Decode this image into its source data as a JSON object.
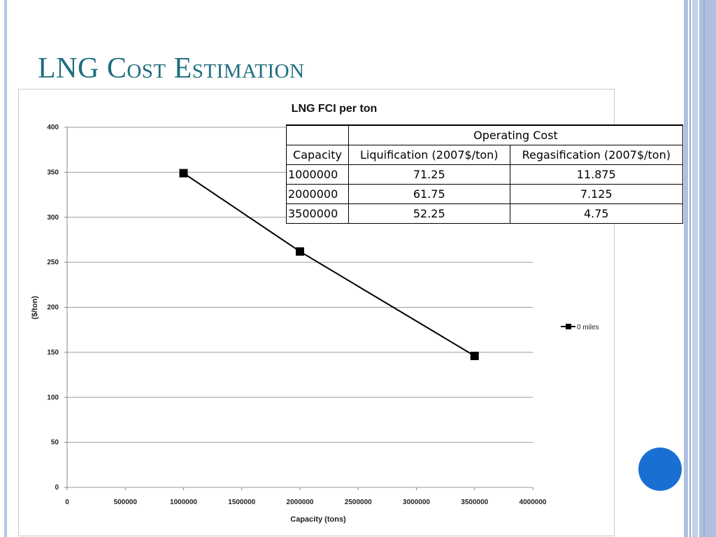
{
  "slide": {
    "title": "LNG Cost Estimation"
  },
  "chart_data": {
    "type": "line",
    "title": "LNG FCI per ton",
    "xlabel": "Capacity (tons)",
    "ylabel": "($/ton)",
    "xlim": [
      0,
      4000000
    ],
    "ylim": [
      0,
      400
    ],
    "x_ticks": [
      "0",
      "500000",
      "1000000",
      "1500000",
      "2000000",
      "2500000",
      "3000000",
      "3500000",
      "4000000"
    ],
    "y_ticks": [
      "0",
      "50",
      "100",
      "150",
      "200",
      "250",
      "300",
      "350",
      "400"
    ],
    "grid": true,
    "legend_position": "right",
    "series": [
      {
        "name": "0 miles",
        "x": [
          1000000,
          2000000,
          3500000
        ],
        "y": [
          349,
          262,
          146
        ],
        "color": "#000000",
        "marker": "square"
      }
    ]
  },
  "table": {
    "group_header": "Operating Cost",
    "columns": [
      "Capacity",
      "Liquification (2007$/ton)",
      "Regasification (2007$/ton)"
    ],
    "rows": [
      [
        "1000000",
        "71.25",
        "11.875"
      ],
      [
        "2000000",
        "61.75",
        "7.125"
      ],
      [
        "3500000",
        "52.25",
        "4.75"
      ]
    ]
  },
  "colors": {
    "title": "#1e6e7e",
    "accent_button": "#1a6fd3",
    "side_band": "#aebfdf"
  }
}
